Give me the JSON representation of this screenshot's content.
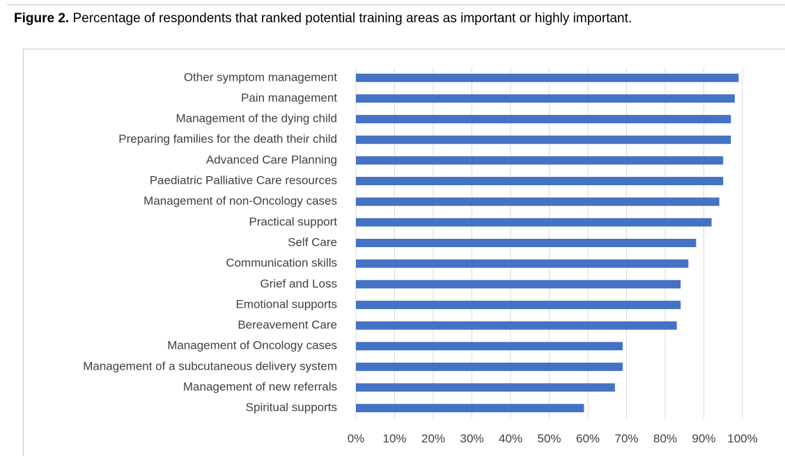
{
  "chart_data": {
    "type": "barh",
    "title_label": "Figure 2.",
    "title": "Percentage of respondents that ranked potential training areas as important or highly important.",
    "categories": [
      "Other symptom management",
      "Pain management",
      "Management of the dying child",
      "Preparing families for the death their child",
      "Advanced Care Planning",
      "Paediatric Palliative Care resources",
      "Management of non-Oncology cases",
      "Practical support",
      "Self Care",
      "Communication skills",
      "Grief and Loss",
      "Emotional supports",
      "Bereavement Care",
      "Management of Oncology cases",
      "Management of a subcutaneous delivery system",
      "Management of new referrals",
      "Spiritual supports"
    ],
    "values": [
      99,
      98,
      97,
      97,
      95,
      95,
      94,
      92,
      88,
      86,
      84,
      84,
      83,
      69,
      69,
      67,
      59
    ],
    "color": "#4472c4",
    "xlim": [
      0,
      100
    ],
    "xticks": [
      {
        "value": 0,
        "label": "0%"
      },
      {
        "value": 10,
        "label": "10%"
      },
      {
        "value": 20,
        "label": "20%"
      },
      {
        "value": 30,
        "label": "30%"
      },
      {
        "value": 40,
        "label": "40%"
      },
      {
        "value": 50,
        "label": "50%"
      },
      {
        "value": 60,
        "label": "60%"
      },
      {
        "value": 70,
        "label": "70%"
      },
      {
        "value": 80,
        "label": "80%"
      },
      {
        "value": 90,
        "label": "90%"
      },
      {
        "value": 100,
        "label": "100%"
      }
    ],
    "grid": true
  }
}
